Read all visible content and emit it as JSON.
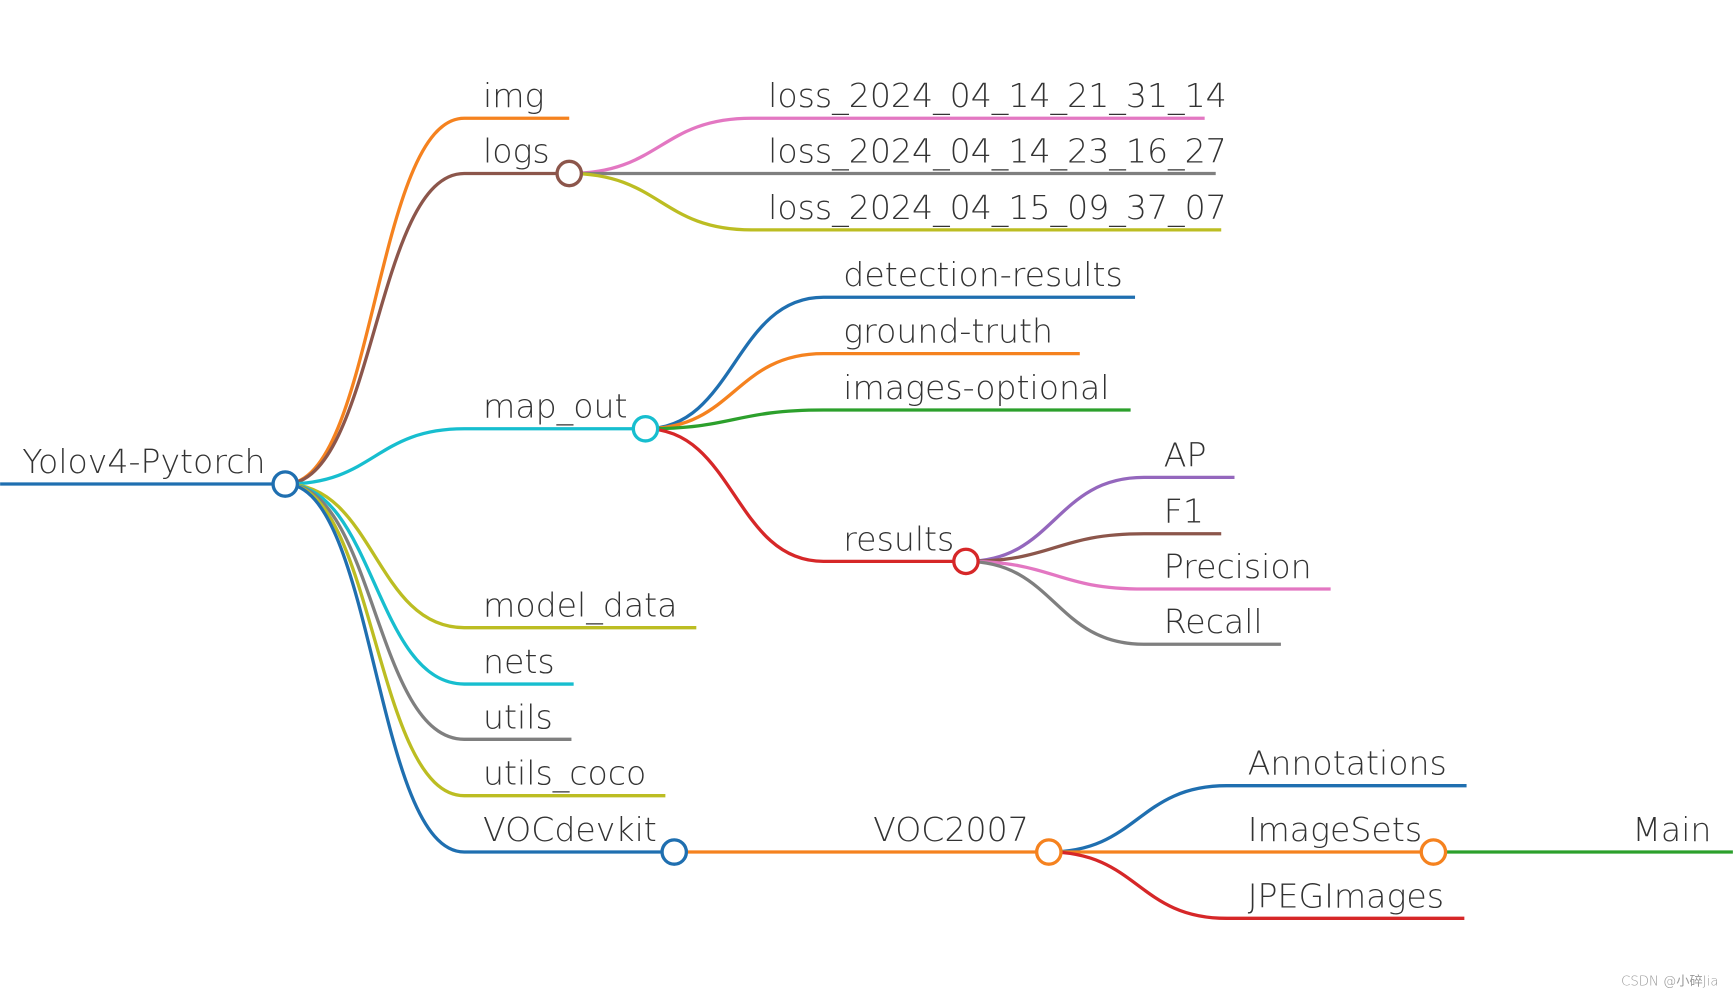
{
  "nodes": [
    {
      "label": "Yolov4-Pytorch",
      "parent": null,
      "color": "#1f6fb0"
    },
    {
      "label": "img",
      "parent": 0,
      "color": "#f5821f"
    },
    {
      "label": "logs",
      "parent": 0,
      "color": "#8c564b"
    },
    {
      "label": "loss_2024_04_14_21_31_14",
      "parent": 2,
      "color": "#e377c2"
    },
    {
      "label": "loss_2024_04_14_23_16_27",
      "parent": 2,
      "color": "#7f7f7f"
    },
    {
      "label": "loss_2024_04_15_09_37_07",
      "parent": 2,
      "color": "#bcbd22"
    },
    {
      "label": "map_out",
      "parent": 0,
      "color": "#17becf"
    },
    {
      "label": "detection-results",
      "parent": 6,
      "color": "#1f6fb0"
    },
    {
      "label": "ground-truth",
      "parent": 6,
      "color": "#f5821f"
    },
    {
      "label": "images-optional",
      "parent": 6,
      "color": "#2ca02c"
    },
    {
      "label": "results",
      "parent": 6,
      "color": "#d62728"
    },
    {
      "label": "AP",
      "parent": 10,
      "color": "#9467bd"
    },
    {
      "label": "F1",
      "parent": 10,
      "color": "#8c564b"
    },
    {
      "label": "Precision",
      "parent": 10,
      "color": "#e377c2"
    },
    {
      "label": "Recall",
      "parent": 10,
      "color": "#7f7f7f"
    },
    {
      "label": "model_data",
      "parent": 0,
      "color": "#bcbd22"
    },
    {
      "label": "nets",
      "parent": 0,
      "color": "#17becf"
    },
    {
      "label": "utils",
      "parent": 0,
      "color": "#7f7f7f"
    },
    {
      "label": "utils_coco",
      "parent": 0,
      "color": "#bcbd22"
    },
    {
      "label": "VOCdevkit",
      "parent": 0,
      "color": "#1f6fb0"
    },
    {
      "label": "VOC2007",
      "parent": 19,
      "color": "#f5821f"
    },
    {
      "label": "Annotations",
      "parent": 20,
      "color": "#1f6fb0"
    },
    {
      "label": "ImageSets",
      "parent": 20,
      "color": "#f5821f"
    },
    {
      "label": "Main",
      "parent": 22,
      "color": "#2ca02c"
    },
    {
      "label": "JPEGImages",
      "parent": 20,
      "color": "#d62728"
    }
  ],
  "watermark": "CSDN @小碎Jia"
}
